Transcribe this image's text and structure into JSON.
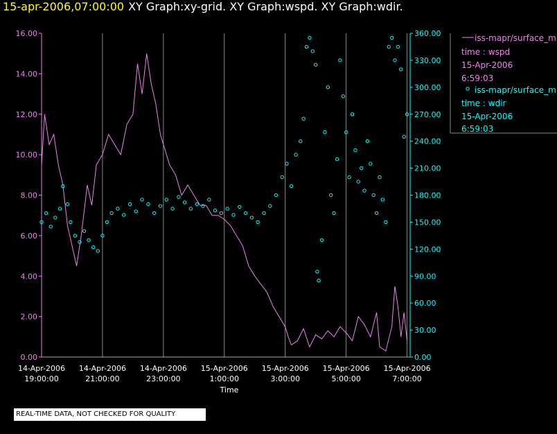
{
  "title": {
    "date": "15-apr-2006,07:00:00",
    "rest": "XY Graph:xy-grid.  XY Graph:wspd.  XY Graph:wdir."
  },
  "notice": "REAL-TIME DATA, NOT CHECKED FOR QUALITY",
  "colors": {
    "wspd": "#ee82ee",
    "wdir": "#00ffff",
    "grid": "#aaaaaa",
    "background": "#000000"
  },
  "chart_data": {
    "type": "line",
    "xlabel": "Time",
    "x_ticks": [
      {
        "line1": "14-Apr-2006",
        "line2": "19:00:00",
        "hour": 0
      },
      {
        "line1": "14-Apr-2006",
        "line2": "21:00:00",
        "hour": 2
      },
      {
        "line1": "14-Apr-2006",
        "line2": "23:00:00",
        "hour": 4
      },
      {
        "line1": "15-Apr-2006",
        "line2": "1:00:00",
        "hour": 6
      },
      {
        "line1": "15-Apr-2006",
        "line2": "3:00:00",
        "hour": 8
      },
      {
        "line1": "15-Apr-2006",
        "line2": "5:00:00",
        "hour": 10
      },
      {
        "line1": "15-Apr-2006",
        "line2": "7:00:00",
        "hour": 12
      }
    ],
    "y_left": {
      "min": 0,
      "max": 16,
      "ticks": [
        "0.00",
        "2.00",
        "4.00",
        "6.00",
        "8.00",
        "10.00",
        "12.00",
        "14.00",
        "16.00"
      ]
    },
    "y_right": {
      "min": 0,
      "max": 360,
      "ticks": [
        "0.00",
        "30.00",
        "60.00",
        "90.00",
        "120.00",
        "150.00",
        "180.00",
        "210.00",
        "240.00",
        "270.00",
        "300.00",
        "330.00",
        "360.00"
      ]
    },
    "grid": true,
    "legend": [
      {
        "label": "iss-mapr/surface_m",
        "line2": "time : wspd",
        "line3": "15-Apr-2006",
        "line4": "6:59:03"
      },
      {
        "label": "iss-mapr/surface_m",
        "line2": "time : wdir",
        "line3": "15-Apr-2006",
        "line4": "6:59:03"
      }
    ],
    "series": [
      {
        "name": "wspd",
        "kind": "line",
        "points": [
          [
            0,
            9.5
          ],
          [
            0.1,
            12.0
          ],
          [
            0.25,
            10.5
          ],
          [
            0.4,
            11.0
          ],
          [
            0.55,
            9.5
          ],
          [
            0.7,
            8.5
          ],
          [
            0.85,
            6.5
          ],
          [
            1.0,
            5.5
          ],
          [
            1.15,
            4.5
          ],
          [
            1.3,
            6.0
          ],
          [
            1.5,
            8.5
          ],
          [
            1.65,
            7.5
          ],
          [
            1.8,
            9.5
          ],
          [
            2.0,
            10.0
          ],
          [
            2.2,
            11.0
          ],
          [
            2.4,
            10.5
          ],
          [
            2.6,
            10.0
          ],
          [
            2.8,
            11.5
          ],
          [
            3.0,
            12.0
          ],
          [
            3.15,
            14.5
          ],
          [
            3.3,
            13.0
          ],
          [
            3.45,
            15.0
          ],
          [
            3.6,
            13.5
          ],
          [
            3.75,
            12.5
          ],
          [
            3.9,
            11.0
          ],
          [
            4.0,
            10.5
          ],
          [
            4.2,
            9.5
          ],
          [
            4.4,
            9.0
          ],
          [
            4.6,
            8.0
          ],
          [
            4.8,
            8.5
          ],
          [
            5.0,
            8.0
          ],
          [
            5.2,
            7.5
          ],
          [
            5.4,
            7.5
          ],
          [
            5.6,
            7.0
          ],
          [
            5.8,
            7.0
          ],
          [
            6.0,
            6.8
          ],
          [
            6.2,
            6.5
          ],
          [
            6.4,
            6.0
          ],
          [
            6.6,
            5.5
          ],
          [
            6.8,
            4.5
          ],
          [
            7.0,
            4.0
          ],
          [
            7.2,
            3.6
          ],
          [
            7.4,
            3.2
          ],
          [
            7.6,
            2.5
          ],
          [
            7.8,
            2.0
          ],
          [
            8.0,
            1.5
          ],
          [
            8.1,
            1.0
          ],
          [
            8.2,
            0.6
          ],
          [
            8.4,
            0.8
          ],
          [
            8.6,
            1.4
          ],
          [
            8.8,
            0.5
          ],
          [
            9.0,
            1.1
          ],
          [
            9.2,
            0.9
          ],
          [
            9.4,
            1.3
          ],
          [
            9.6,
            1.0
          ],
          [
            9.8,
            1.5
          ],
          [
            10.0,
            1.2
          ],
          [
            10.2,
            0.8
          ],
          [
            10.4,
            2.0
          ],
          [
            10.6,
            1.6
          ],
          [
            10.8,
            1.0
          ],
          [
            11.0,
            2.2
          ],
          [
            11.1,
            0.5
          ],
          [
            11.3,
            0.3
          ],
          [
            11.5,
            1.5
          ],
          [
            11.6,
            3.5
          ],
          [
            11.7,
            2.5
          ],
          [
            11.8,
            1.0
          ],
          [
            11.9,
            2.2
          ],
          [
            12.0,
            0.8
          ]
        ]
      },
      {
        "name": "wdir",
        "kind": "scatter",
        "points": [
          [
            0,
            150
          ],
          [
            0.15,
            160
          ],
          [
            0.3,
            145
          ],
          [
            0.45,
            155
          ],
          [
            0.6,
            165
          ],
          [
            0.7,
            190
          ],
          [
            0.85,
            170
          ],
          [
            0.95,
            150
          ],
          [
            1.1,
            135
          ],
          [
            1.25,
            128
          ],
          [
            1.4,
            140
          ],
          [
            1.55,
            130
          ],
          [
            1.7,
            122
          ],
          [
            1.85,
            118
          ],
          [
            2.0,
            135
          ],
          [
            2.15,
            150
          ],
          [
            2.3,
            160
          ],
          [
            2.5,
            165
          ],
          [
            2.7,
            158
          ],
          [
            2.9,
            170
          ],
          [
            3.1,
            162
          ],
          [
            3.3,
            175
          ],
          [
            3.5,
            170
          ],
          [
            3.7,
            160
          ],
          [
            3.9,
            168
          ],
          [
            4.1,
            175
          ],
          [
            4.3,
            165
          ],
          [
            4.5,
            178
          ],
          [
            4.7,
            172
          ],
          [
            4.9,
            165
          ],
          [
            5.1,
            170
          ],
          [
            5.3,
            168
          ],
          [
            5.5,
            175
          ],
          [
            5.7,
            163
          ],
          [
            5.9,
            160
          ],
          [
            6.1,
            165
          ],
          [
            6.3,
            158
          ],
          [
            6.5,
            167
          ],
          [
            6.7,
            160
          ],
          [
            6.9,
            155
          ],
          [
            7.1,
            150
          ],
          [
            7.3,
            160
          ],
          [
            7.5,
            168
          ],
          [
            7.7,
            180
          ],
          [
            7.9,
            200
          ],
          [
            8.05,
            215
          ],
          [
            8.2,
            190
          ],
          [
            8.35,
            225
          ],
          [
            8.5,
            240
          ],
          [
            8.6,
            265
          ],
          [
            8.7,
            345
          ],
          [
            8.8,
            355
          ],
          [
            8.9,
            340
          ],
          [
            9.0,
            325
          ],
          [
            9.05,
            95
          ],
          [
            9.1,
            85
          ],
          [
            9.2,
            130
          ],
          [
            9.3,
            250
          ],
          [
            9.4,
            300
          ],
          [
            9.5,
            180
          ],
          [
            9.6,
            160
          ],
          [
            9.7,
            220
          ],
          [
            9.8,
            330
          ],
          [
            9.9,
            290
          ],
          [
            10.0,
            250
          ],
          [
            10.1,
            200
          ],
          [
            10.2,
            270
          ],
          [
            10.3,
            230
          ],
          [
            10.4,
            195
          ],
          [
            10.5,
            210
          ],
          [
            10.6,
            185
          ],
          [
            10.7,
            240
          ],
          [
            10.8,
            215
          ],
          [
            10.9,
            180
          ],
          [
            11.0,
            160
          ],
          [
            11.1,
            200
          ],
          [
            11.2,
            175
          ],
          [
            11.3,
            150
          ],
          [
            11.4,
            345
          ],
          [
            11.5,
            355
          ],
          [
            11.6,
            330
          ],
          [
            11.7,
            345
          ],
          [
            11.8,
            320
          ],
          [
            11.9,
            245
          ],
          [
            12.0,
            270
          ]
        ]
      }
    ]
  }
}
